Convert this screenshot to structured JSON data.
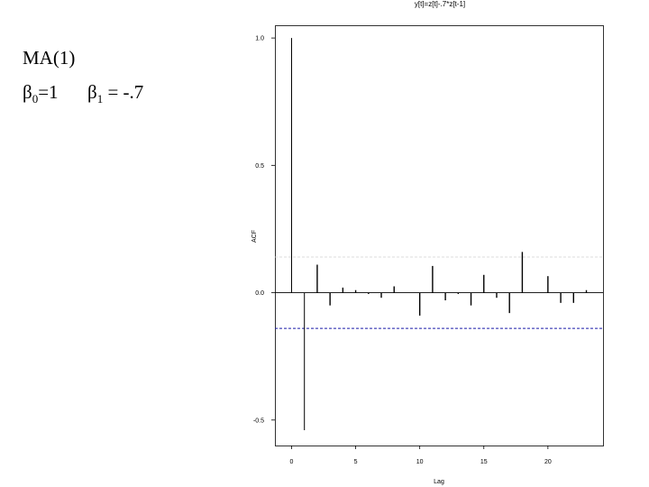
{
  "slide": {
    "model_title": "MA(1)",
    "param_beta0_symbol": "β",
    "param_beta0_sub": "0",
    "param_beta0_value": "=1",
    "param_beta1_symbol": "β",
    "param_beta1_sub": "1",
    "param_beta1_value": " = -.7"
  },
  "chart_data": {
    "type": "bar",
    "title": "y[t]=z[t]-.7*z[t-1]",
    "xlabel": "Lag",
    "ylabel": "ACF",
    "x": [
      0,
      1,
      2,
      3,
      4,
      5,
      6,
      7,
      8,
      9,
      10,
      11,
      12,
      13,
      14,
      15,
      16,
      17,
      18,
      19,
      20,
      21,
      22,
      23
    ],
    "values": [
      1.0,
      -0.54,
      0.11,
      -0.05,
      0.02,
      0.01,
      -0.005,
      -0.02,
      0.025,
      0.0,
      -0.09,
      0.105,
      -0.03,
      -0.005,
      -0.05,
      0.07,
      -0.02,
      -0.08,
      0.16,
      0.0,
      0.065,
      -0.04,
      -0.04,
      0.01
    ],
    "xlim": [
      -1.3,
      24.3
    ],
    "ylim": [
      -0.6,
      1.05
    ],
    "xticks": [
      0,
      5,
      10,
      15,
      20
    ],
    "xtick_labels": [
      "0",
      "5",
      "10",
      "15",
      "20"
    ],
    "yticks": [
      1.0,
      0.5,
      0.0,
      -0.5
    ],
    "ytick_labels": [
      "1.0",
      "0.5",
      "0.0",
      "-0.5"
    ],
    "confidence_bound": 0.14,
    "colors": {
      "bars": "#000000",
      "confidence_upper": "#d0d0d0",
      "confidence_lower": "#1a1aa8"
    },
    "grid": false
  }
}
